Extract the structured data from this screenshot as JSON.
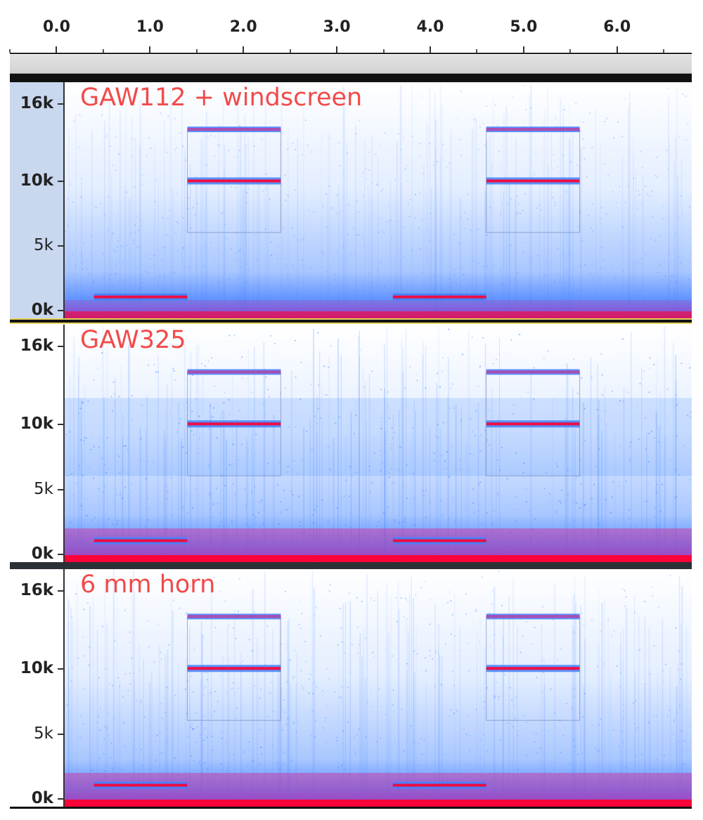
{
  "timeline": {
    "labels": [
      "0.0",
      "1.0",
      "2.0",
      "3.0",
      "4.0",
      "5.0",
      "6.0"
    ],
    "start_seconds": -0.5,
    "end_seconds": 6.8
  },
  "tracks": [
    {
      "name": "GAW112 + windscreen",
      "selected": true,
      "freq_labels": [
        "16k",
        "10k",
        "5k",
        "0k"
      ],
      "tones": [
        {
          "start_s": 1.4,
          "end_s": 2.4,
          "freq_hz": 14000,
          "strength": "medium"
        },
        {
          "start_s": 1.4,
          "end_s": 2.4,
          "freq_hz": 10000,
          "strength": "strong"
        },
        {
          "start_s": 4.6,
          "end_s": 5.6,
          "freq_hz": 14000,
          "strength": "medium"
        },
        {
          "start_s": 4.6,
          "end_s": 5.6,
          "freq_hz": 10000,
          "strength": "strong"
        },
        {
          "start_s": 0.4,
          "end_s": 1.4,
          "freq_hz": 1000,
          "strength": "strong"
        },
        {
          "start_s": 3.6,
          "end_s": 4.6,
          "freq_hz": 1000,
          "strength": "strong"
        }
      ],
      "noise_level": "low",
      "bass_level": "low"
    },
    {
      "name": "GAW325",
      "selected": false,
      "freq_labels": [
        "16k",
        "10k",
        "5k",
        "0k"
      ],
      "tones": [
        {
          "start_s": 1.4,
          "end_s": 2.4,
          "freq_hz": 14000,
          "strength": "medium"
        },
        {
          "start_s": 1.4,
          "end_s": 2.4,
          "freq_hz": 10000,
          "strength": "strong"
        },
        {
          "start_s": 4.6,
          "end_s": 5.6,
          "freq_hz": 14000,
          "strength": "medium"
        },
        {
          "start_s": 4.6,
          "end_s": 5.6,
          "freq_hz": 10000,
          "strength": "strong"
        },
        {
          "start_s": 0.4,
          "end_s": 1.4,
          "freq_hz": 1000,
          "strength": "strong"
        },
        {
          "start_s": 3.6,
          "end_s": 4.6,
          "freq_hz": 1000,
          "strength": "strong"
        }
      ],
      "noise_level": "high",
      "bass_level": "high"
    },
    {
      "name": "6 mm horn",
      "selected": false,
      "freq_labels": [
        "16k",
        "10k",
        "5k",
        "0k"
      ],
      "tones": [
        {
          "start_s": 1.4,
          "end_s": 2.4,
          "freq_hz": 14000,
          "strength": "medium"
        },
        {
          "start_s": 1.4,
          "end_s": 2.4,
          "freq_hz": 10000,
          "strength": "strong"
        },
        {
          "start_s": 4.6,
          "end_s": 5.6,
          "freq_hz": 14000,
          "strength": "medium"
        },
        {
          "start_s": 4.6,
          "end_s": 5.6,
          "freq_hz": 10000,
          "strength": "strong"
        },
        {
          "start_s": 0.4,
          "end_s": 1.4,
          "freq_hz": 1000,
          "strength": "strong"
        },
        {
          "start_s": 3.6,
          "end_s": 4.6,
          "freq_hz": 1000,
          "strength": "strong"
        }
      ],
      "noise_level": "medium",
      "bass_level": "high"
    }
  ],
  "colors": {
    "track_label": "#f24a4a",
    "noise_blue": "#3f83ff",
    "tone_magenta": "#e0208c",
    "bass_red": "#ff0030",
    "selected_ruler": "#c9d7ef"
  }
}
